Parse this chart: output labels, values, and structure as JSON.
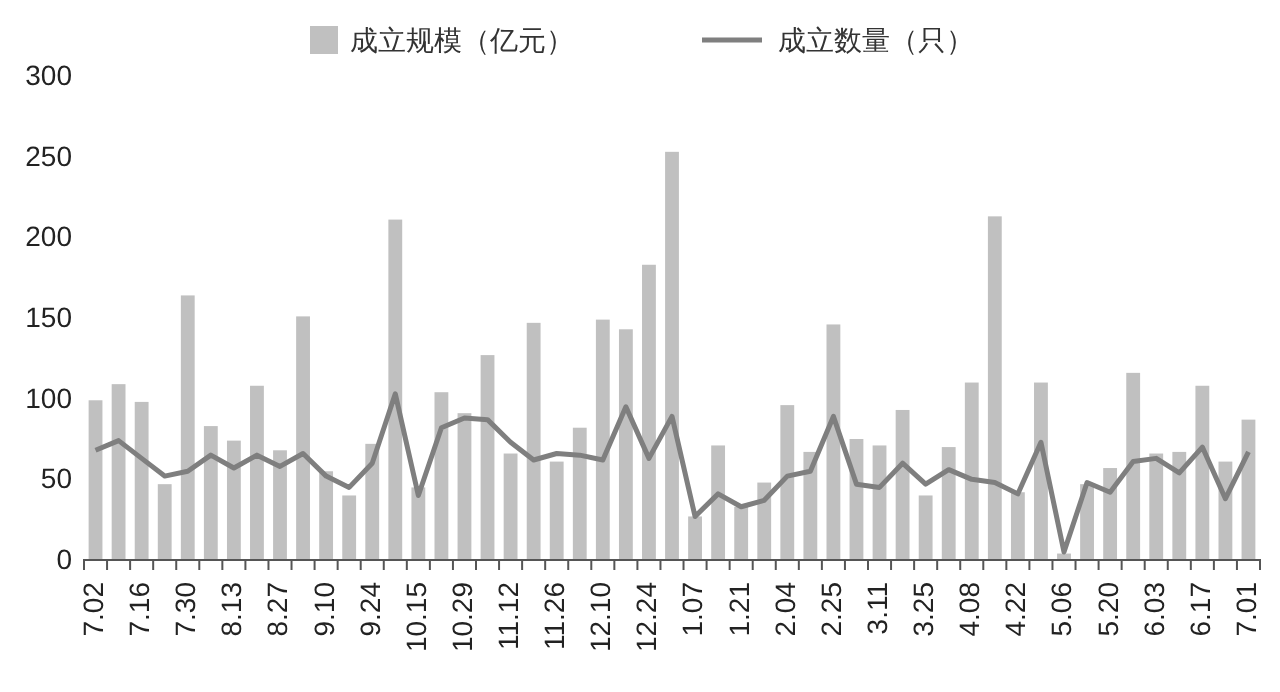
{
  "chart_data": {
    "type": "bar",
    "categories": [
      "7.02",
      null,
      "7.16",
      null,
      "7.30",
      null,
      "8.13",
      null,
      "8.27",
      null,
      "9.10",
      null,
      "9.24",
      null,
      "10.15",
      null,
      "10.29",
      null,
      "11.12",
      null,
      "11.26",
      null,
      "12.10",
      null,
      "12.24",
      null,
      "1.07",
      null,
      "1.21",
      null,
      "2.04",
      null,
      "2.25",
      null,
      "3.11",
      null,
      "3.25",
      null,
      "4.08",
      null,
      "4.22",
      null,
      "5.06",
      null,
      "5.20",
      null,
      "6.03",
      null,
      "6.17",
      null,
      "7.01"
    ],
    "series": [
      {
        "name": "成立规模（亿元）",
        "color": "#c0c0c0",
        "values": [
          99,
          109,
          98,
          47,
          164,
          83,
          74,
          108,
          68,
          151,
          55,
          40,
          72,
          211,
          45,
          104,
          91,
          127,
          66,
          147,
          61,
          82,
          149,
          143,
          183,
          253,
          27,
          71,
          33,
          48,
          96,
          67,
          146,
          75,
          71,
          93,
          40,
          70,
          110,
          213,
          42,
          110,
          4,
          47,
          57,
          116,
          66,
          67,
          108,
          61,
          87
        ]
      },
      {
        "name": "成立数量（只）",
        "type": "line",
        "color": "#7f7f7f",
        "values": [
          68,
          74,
          63,
          52,
          55,
          65,
          57,
          65,
          58,
          66,
          52,
          45,
          60,
          103,
          40,
          82,
          88,
          87,
          73,
          62,
          66,
          65,
          62,
          95,
          63,
          89,
          27,
          41,
          33,
          37,
          52,
          55,
          89,
          47,
          45,
          60,
          47,
          56,
          50,
          48,
          41,
          73,
          5,
          48,
          42,
          61,
          63,
          54,
          70,
          38,
          67
        ]
      }
    ],
    "ylim": [
      0,
      300
    ],
    "yticks": [
      0,
      50,
      100,
      150,
      200,
      250,
      300
    ],
    "grid": false,
    "legend": "top",
    "marker": "none",
    "line_style": "solid"
  }
}
